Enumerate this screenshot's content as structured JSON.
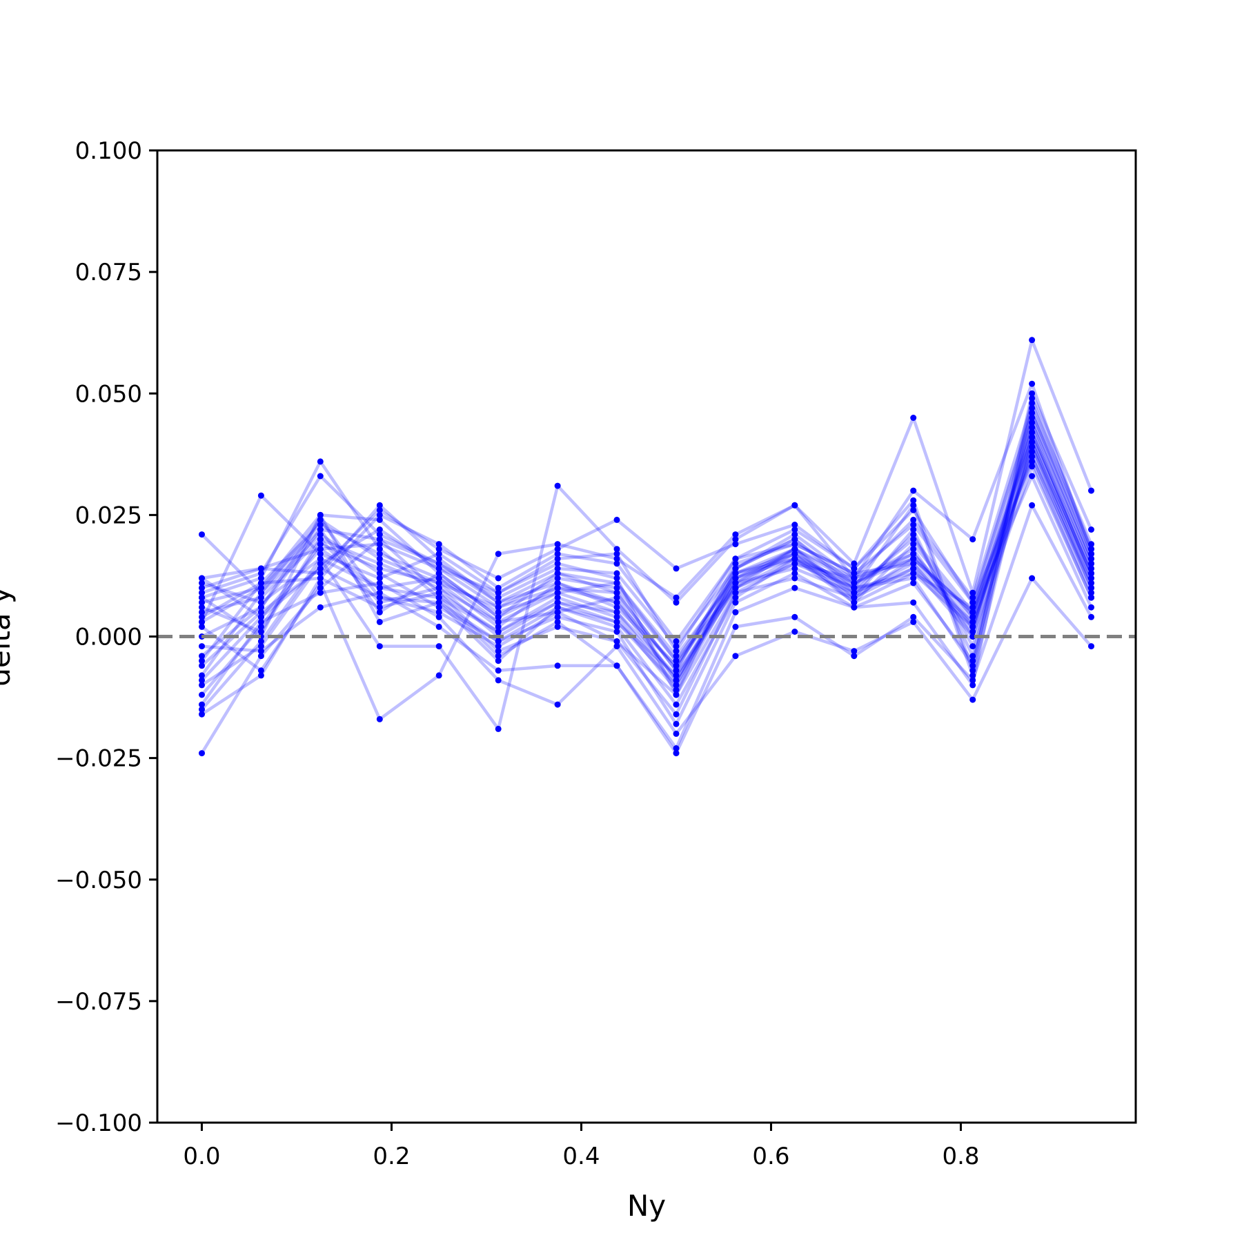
{
  "chart_data": {
    "type": "line",
    "title": "",
    "xlabel": "Ny",
    "ylabel": "delta y",
    "xlim": [
      -0.046875,
      0.984375
    ],
    "ylim": [
      -0.1,
      0.1
    ],
    "xticks": [
      0.0,
      0.2,
      0.4,
      0.6,
      0.8
    ],
    "xtick_labels": [
      "0.0",
      "0.2",
      "0.4",
      "0.6",
      "0.8"
    ],
    "yticks": [
      -0.1,
      -0.075,
      -0.05,
      -0.025,
      0.0,
      0.025,
      0.05,
      0.075,
      0.1
    ],
    "ytick_labels": [
      "−0.100",
      "−0.075",
      "−0.050",
      "−0.025",
      "0.000",
      "0.025",
      "0.050",
      "0.075",
      "0.100"
    ],
    "grid": false,
    "reference_line": {
      "y": 0.0,
      "style": "dashed",
      "color": "#808080"
    },
    "series_color": "#0000ff",
    "line_alpha": 0.25,
    "x": [
      0.0,
      0.0625,
      0.125,
      0.1875,
      0.25,
      0.3125,
      0.375,
      0.4375,
      0.5,
      0.5625,
      0.625,
      0.6875,
      0.75,
      0.8125,
      0.875,
      0.9375
    ],
    "series": [
      {
        "values": [
          0.012,
          0.004,
          0.018,
          0.01,
          0.012,
          0.003,
          0.009,
          0.005,
          -0.008,
          0.011,
          0.017,
          0.009,
          0.014,
          0.003,
          0.04,
          0.012
        ]
      },
      {
        "values": [
          0.005,
          0.008,
          0.02,
          0.015,
          0.01,
          0.0,
          0.007,
          0.003,
          -0.01,
          0.013,
          0.016,
          0.011,
          0.016,
          0.005,
          0.042,
          0.014
        ]
      },
      {
        "values": [
          -0.01,
          -0.002,
          0.015,
          0.022,
          0.014,
          0.006,
          0.012,
          0.01,
          -0.005,
          0.01,
          0.018,
          0.008,
          0.022,
          -0.004,
          0.045,
          0.016
        ]
      },
      {
        "values": [
          0.021,
          0.009,
          0.024,
          0.008,
          0.005,
          -0.002,
          0.005,
          -0.001,
          -0.016,
          0.009,
          0.015,
          0.012,
          0.017,
          0.002,
          0.038,
          0.01
        ]
      },
      {
        "values": [
          0.003,
          0.029,
          0.017,
          0.012,
          0.017,
          0.009,
          0.015,
          0.012,
          -0.012,
          0.014,
          0.02,
          0.01,
          0.012,
          -0.006,
          0.047,
          0.017
        ]
      },
      {
        "values": [
          -0.016,
          -0.008,
          0.012,
          0.025,
          0.019,
          0.01,
          0.017,
          0.015,
          -0.001,
          0.016,
          0.022,
          0.014,
          0.026,
          0.007,
          0.036,
          0.008
        ]
      },
      {
        "values": [
          0.008,
          0.012,
          0.036,
          0.018,
          0.008,
          -0.004,
          0.003,
          -0.006,
          -0.023,
          0.005,
          0.01,
          0.006,
          0.007,
          -0.01,
          0.049,
          0.018
        ]
      },
      {
        "values": [
          -0.004,
          0.006,
          0.022,
          0.005,
          0.013,
          0.004,
          0.01,
          0.007,
          -0.009,
          0.012,
          0.017,
          0.007,
          0.019,
          0.004,
          0.041,
          0.013
        ]
      },
      {
        "values": [
          0.01,
          0.014,
          0.013,
          0.027,
          0.016,
          0.007,
          0.013,
          0.009,
          -0.007,
          0.015,
          0.019,
          0.013,
          0.015,
          0.001,
          0.044,
          0.015
        ]
      },
      {
        "values": [
          -0.024,
          -0.004,
          0.01,
          0.02,
          0.009,
          0.001,
          0.008,
          0.004,
          -0.011,
          0.011,
          0.014,
          0.009,
          0.021,
          -0.002,
          0.039,
          0.011
        ]
      },
      {
        "values": [
          0.007,
          0.01,
          0.025,
          0.003,
          0.007,
          -0.005,
          0.006,
          0.002,
          -0.014,
          0.008,
          0.016,
          0.01,
          0.013,
          0.006,
          0.046,
          0.016
        ]
      },
      {
        "values": [
          -0.012,
          0.002,
          0.019,
          0.014,
          0.011,
          0.002,
          0.011,
          0.006,
          -0.006,
          0.013,
          0.018,
          0.011,
          0.018,
          0.0,
          0.043,
          0.012
        ]
      },
      {
        "values": [
          0.011,
          0.007,
          0.016,
          -0.002,
          -0.002,
          -0.019,
          0.031,
          0.018,
          0.007,
          0.02,
          0.027,
          0.015,
          0.045,
          0.009,
          0.061,
          0.03
        ]
      },
      {
        "values": [
          0.004,
          0.011,
          0.023,
          0.017,
          0.012,
          0.005,
          0.009,
          0.011,
          -0.004,
          0.012,
          0.016,
          0.008,
          0.016,
          0.003,
          0.037,
          0.009
        ]
      },
      {
        "values": [
          -0.006,
          0.005,
          0.014,
          0.026,
          0.018,
          0.012,
          0.018,
          0.024,
          0.014,
          0.019,
          0.023,
          0.014,
          0.028,
          -0.007,
          0.05,
          0.022
        ]
      },
      {
        "values": [
          0.002,
          -0.007,
          0.011,
          -0.017,
          -0.008,
          0.017,
          0.019,
          0.016,
          0.008,
          0.021,
          0.027,
          0.012,
          0.03,
          0.02,
          0.052,
          0.017
        ]
      },
      {
        "values": [
          -0.014,
          0.003,
          0.009,
          0.011,
          0.004,
          -0.009,
          -0.014,
          -0.002,
          -0.02,
          -0.004,
          0.001,
          -0.003,
          0.003,
          -0.013,
          0.012,
          -0.002
        ]
      },
      {
        "values": [
          0.009,
          0.013,
          0.033,
          0.021,
          0.015,
          0.008,
          0.014,
          0.013,
          -0.002,
          0.014,
          0.021,
          0.012,
          0.024,
          0.008,
          0.048,
          0.019
        ]
      },
      {
        "values": [
          -0.002,
          -0.003,
          0.006,
          0.009,
          0.002,
          -0.007,
          -0.006,
          -0.006,
          -0.024,
          0.002,
          0.004,
          -0.004,
          0.004,
          -0.009,
          0.027,
          0.004
        ]
      },
      {
        "values": [
          0.006,
          0.001,
          0.02,
          0.007,
          0.01,
          0.003,
          0.005,
          0.008,
          -0.009,
          0.01,
          0.015,
          0.01,
          0.02,
          0.005,
          0.033,
          0.006
        ]
      },
      {
        "values": [
          -0.008,
          0.009,
          0.021,
          0.013,
          0.006,
          -0.001,
          0.004,
          0.001,
          -0.018,
          0.007,
          0.013,
          0.006,
          0.011,
          -0.005,
          0.04,
          0.01
        ]
      },
      {
        "values": [
          0.012,
          0.014,
          0.018,
          0.019,
          0.014,
          0.009,
          0.016,
          0.017,
          -0.003,
          0.016,
          0.019,
          0.013,
          0.023,
          0.007,
          0.046,
          0.018
        ]
      },
      {
        "values": [
          -0.015,
          -0.001,
          0.016,
          0.01,
          0.008,
          0.001,
          0.007,
          0.005,
          -0.01,
          0.012,
          0.018,
          0.009,
          0.015,
          0.002,
          0.039,
          0.013
        ]
      },
      {
        "values": [
          0.0,
          0.006,
          0.024,
          0.016,
          0.011,
          0.006,
          0.01,
          0.009,
          -0.007,
          0.014,
          0.02,
          0.011,
          0.017,
          0.004,
          0.044,
          0.015
        ]
      },
      {
        "values": [
          -0.005,
          0.011,
          0.012,
          0.006,
          0.009,
          -0.003,
          0.002,
          -0.001,
          -0.012,
          0.009,
          0.012,
          0.008,
          0.014,
          0.0,
          0.035,
          0.008
        ]
      },
      {
        "values": [
          0.008,
          0.0,
          0.025,
          0.024,
          0.013,
          0.004,
          0.013,
          0.011,
          -0.005,
          0.013,
          0.017,
          0.01,
          0.027,
          -0.008,
          0.042,
          0.014
        ]
      },
      {
        "values": [
          -0.009,
          0.004,
          0.014,
          0.008,
          0.007,
          -0.001,
          0.006,
          0.003,
          -0.008,
          0.01,
          0.016,
          0.007,
          0.013,
          0.002,
          0.037,
          0.011
        ]
      },
      {
        "values": [
          0.003,
          0.01,
          0.022,
          0.02,
          0.015,
          0.007,
          0.011,
          0.007,
          -0.006,
          0.011,
          0.018,
          0.012,
          0.016,
          0.005,
          0.041,
          0.013
        ]
      }
    ]
  }
}
